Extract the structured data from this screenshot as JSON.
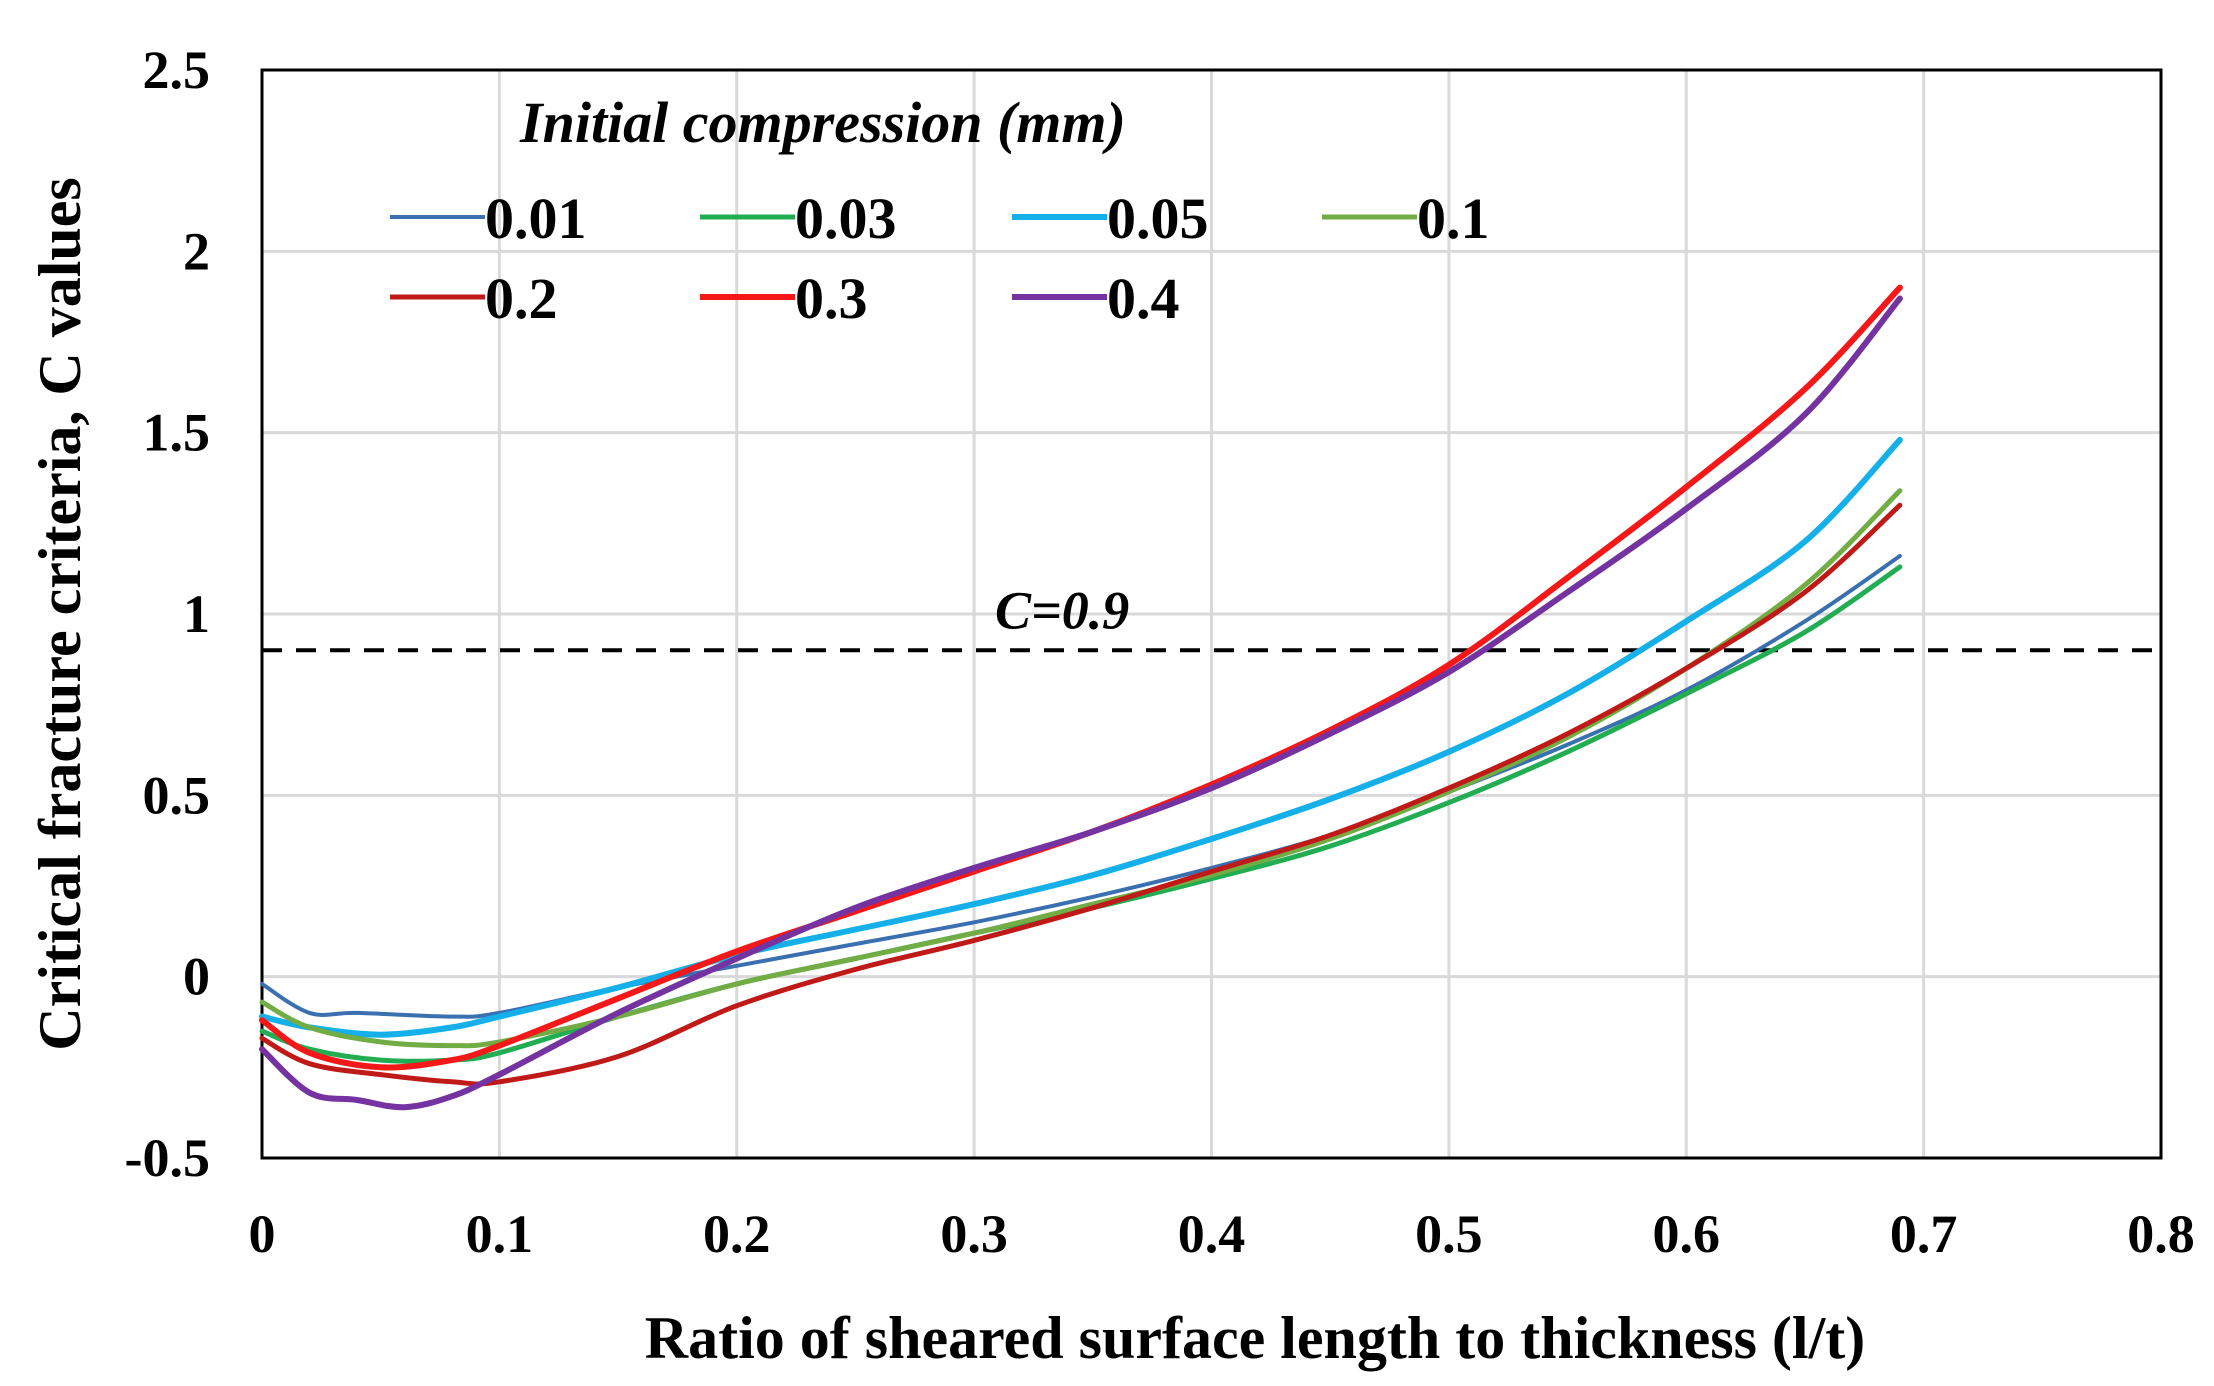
{
  "chart_data": {
    "type": "line",
    "title": "",
    "xlabel": "Ratio of sheared surface length to thickness (l/t)",
    "ylabel": "Critical fracture criteria, C values",
    "xlim": [
      0,
      0.8
    ],
    "ylim": [
      -0.5,
      2.5
    ],
    "x_ticks": [
      0,
      0.1,
      0.2,
      0.3,
      0.4,
      0.5,
      0.6,
      0.7,
      0.8
    ],
    "x_tick_labels": [
      "0",
      "0.1",
      "0.2",
      "0.3",
      "0.4",
      "0.5",
      "0.6",
      "0.7",
      "0.8"
    ],
    "y_ticks": [
      -0.5,
      0,
      0.5,
      1,
      1.5,
      2,
      2.5
    ],
    "y_tick_labels": [
      "-0.5",
      "0",
      "0.5",
      "1",
      "1.5",
      "2",
      "2.5"
    ],
    "grid": true,
    "legend_title": "Initial compression (mm)",
    "legend_position": "top-left",
    "reference_line": {
      "y": 0.9,
      "label": "C=0.9",
      "style": "dashed"
    },
    "series": [
      {
        "name": "0.01",
        "color": "#3a6fb0",
        "points": [
          [
            0,
            -0.02
          ],
          [
            0.02,
            -0.1
          ],
          [
            0.04,
            -0.1
          ],
          [
            0.08,
            -0.11
          ],
          [
            0.1,
            -0.1
          ],
          [
            0.15,
            -0.03
          ],
          [
            0.2,
            0.03
          ],
          [
            0.25,
            0.09
          ],
          [
            0.3,
            0.15
          ],
          [
            0.35,
            0.22
          ],
          [
            0.4,
            0.3
          ],
          [
            0.45,
            0.39
          ],
          [
            0.5,
            0.51
          ],
          [
            0.55,
            0.64
          ],
          [
            0.6,
            0.79
          ],
          [
            0.65,
            0.98
          ],
          [
            0.69,
            1.16
          ]
        ]
      },
      {
        "name": "0.03",
        "color": "#22ad52",
        "points": [
          [
            0,
            -0.15
          ],
          [
            0.02,
            -0.2
          ],
          [
            0.05,
            -0.23
          ],
          [
            0.08,
            -0.23
          ],
          [
            0.1,
            -0.21
          ],
          [
            0.15,
            -0.11
          ],
          [
            0.2,
            -0.02
          ],
          [
            0.25,
            0.05
          ],
          [
            0.3,
            0.12
          ],
          [
            0.35,
            0.19
          ],
          [
            0.4,
            0.27
          ],
          [
            0.45,
            0.36
          ],
          [
            0.5,
            0.48
          ],
          [
            0.55,
            0.62
          ],
          [
            0.6,
            0.78
          ],
          [
            0.65,
            0.95
          ],
          [
            0.69,
            1.13
          ]
        ]
      },
      {
        "name": "0.05",
        "color": "#15b0ea",
        "points": [
          [
            0,
            -0.11
          ],
          [
            0.02,
            -0.14
          ],
          [
            0.05,
            -0.16
          ],
          [
            0.08,
            -0.14
          ],
          [
            0.1,
            -0.11
          ],
          [
            0.15,
            -0.03
          ],
          [
            0.2,
            0.06
          ],
          [
            0.25,
            0.13
          ],
          [
            0.3,
            0.2
          ],
          [
            0.35,
            0.28
          ],
          [
            0.4,
            0.38
          ],
          [
            0.45,
            0.49
          ],
          [
            0.5,
            0.62
          ],
          [
            0.55,
            0.78
          ],
          [
            0.6,
            0.98
          ],
          [
            0.65,
            1.2
          ],
          [
            0.69,
            1.48
          ]
        ]
      },
      {
        "name": "0.1",
        "color": "#72ac45",
        "points": [
          [
            0,
            -0.07
          ],
          [
            0.02,
            -0.14
          ],
          [
            0.05,
            -0.18
          ],
          [
            0.08,
            -0.19
          ],
          [
            0.1,
            -0.18
          ],
          [
            0.15,
            -0.11
          ],
          [
            0.2,
            -0.02
          ],
          [
            0.25,
            0.05
          ],
          [
            0.3,
            0.12
          ],
          [
            0.35,
            0.2
          ],
          [
            0.4,
            0.28
          ],
          [
            0.45,
            0.38
          ],
          [
            0.5,
            0.51
          ],
          [
            0.55,
            0.66
          ],
          [
            0.6,
            0.85
          ],
          [
            0.65,
            1.08
          ],
          [
            0.69,
            1.34
          ]
        ]
      },
      {
        "name": "0.2",
        "color": "#bf1a17",
        "points": [
          [
            0,
            -0.17
          ],
          [
            0.02,
            -0.24
          ],
          [
            0.05,
            -0.27
          ],
          [
            0.08,
            -0.29
          ],
          [
            0.1,
            -0.29
          ],
          [
            0.15,
            -0.22
          ],
          [
            0.2,
            -0.08
          ],
          [
            0.25,
            0.02
          ],
          [
            0.3,
            0.1
          ],
          [
            0.35,
            0.19
          ],
          [
            0.4,
            0.29
          ],
          [
            0.45,
            0.39
          ],
          [
            0.5,
            0.52
          ],
          [
            0.55,
            0.67
          ],
          [
            0.6,
            0.85
          ],
          [
            0.65,
            1.06
          ],
          [
            0.69,
            1.3
          ]
        ]
      },
      {
        "name": "0.3",
        "color": "#f51818",
        "points": [
          [
            0,
            -0.12
          ],
          [
            0.02,
            -0.21
          ],
          [
            0.05,
            -0.25
          ],
          [
            0.08,
            -0.23
          ],
          [
            0.1,
            -0.19
          ],
          [
            0.15,
            -0.06
          ],
          [
            0.2,
            0.07
          ],
          [
            0.25,
            0.18
          ],
          [
            0.3,
            0.29
          ],
          [
            0.35,
            0.4
          ],
          [
            0.4,
            0.53
          ],
          [
            0.45,
            0.68
          ],
          [
            0.5,
            0.86
          ],
          [
            0.55,
            1.1
          ],
          [
            0.6,
            1.35
          ],
          [
            0.65,
            1.62
          ],
          [
            0.69,
            1.9
          ]
        ]
      },
      {
        "name": "0.4",
        "color": "#7433a0",
        "points": [
          [
            0,
            -0.2
          ],
          [
            0.02,
            -0.32
          ],
          [
            0.04,
            -0.34
          ],
          [
            0.06,
            -0.36
          ],
          [
            0.08,
            -0.33
          ],
          [
            0.1,
            -0.27
          ],
          [
            0.15,
            -0.1
          ],
          [
            0.2,
            0.05
          ],
          [
            0.25,
            0.19
          ],
          [
            0.3,
            0.3
          ],
          [
            0.35,
            0.4
          ],
          [
            0.4,
            0.52
          ],
          [
            0.45,
            0.67
          ],
          [
            0.5,
            0.84
          ],
          [
            0.55,
            1.06
          ],
          [
            0.6,
            1.29
          ],
          [
            0.65,
            1.55
          ],
          [
            0.69,
            1.87
          ]
        ]
      }
    ]
  }
}
